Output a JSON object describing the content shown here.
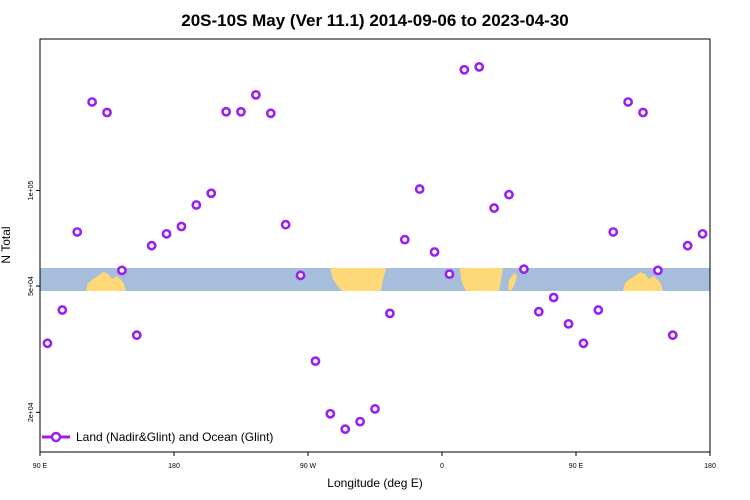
{
  "chart_data": {
    "type": "scatter",
    "title": "20S-10S May (Ver 11.1)   2014-09-06 to 2023-04-30",
    "xlabel": "Longitude (deg E)",
    "ylabel": "N Total",
    "y_scale": "log",
    "xlim": [
      90,
      540
    ],
    "ylim": [
      15000,
      300000
    ],
    "x_ticks": [
      {
        "value": 90,
        "label": "90 E"
      },
      {
        "value": 180,
        "label": "180"
      },
      {
        "value": 270,
        "label": "90 W"
      },
      {
        "value": 360,
        "label": "0"
      },
      {
        "value": 450,
        "label": "90 E"
      },
      {
        "value": 540,
        "label": "180"
      }
    ],
    "y_ticks": [
      {
        "value": 20000,
        "label": "2e+04"
      },
      {
        "value": 50000,
        "label": "5e+04"
      },
      {
        "value": 100000,
        "label": "1e+05"
      }
    ],
    "grid": false,
    "legend_position": "bottom-left",
    "series": [
      {
        "name": "Land (Nadir&Glint) and Ocean (Glint)",
        "color": "#9a1ff0",
        "marker": "open-circle",
        "points": [
          [
            95,
            33000
          ],
          [
            105,
            42000
          ],
          [
            115,
            74000
          ],
          [
            125,
            190000
          ],
          [
            135,
            176000
          ],
          [
            145,
            56000
          ],
          [
            155,
            35000
          ],
          [
            165,
            67000
          ],
          [
            175,
            73000
          ],
          [
            185,
            77000
          ],
          [
            195,
            90000
          ],
          [
            205,
            98000
          ],
          [
            215,
            177000
          ],
          [
            225,
            177000
          ],
          [
            235,
            200000
          ],
          [
            245,
            175000
          ],
          [
            255,
            78000
          ],
          [
            265,
            54000
          ],
          [
            275,
            29000
          ],
          [
            285,
            19800
          ],
          [
            295,
            17700
          ],
          [
            305,
            18700
          ],
          [
            315,
            20500
          ],
          [
            325,
            41000
          ],
          [
            335,
            70000
          ],
          [
            345,
            101000
          ],
          [
            355,
            64000
          ],
          [
            365,
            54500
          ],
          [
            375,
            240000
          ],
          [
            385,
            245000
          ],
          [
            395,
            88000
          ],
          [
            405,
            97000
          ],
          [
            415,
            56500
          ],
          [
            425,
            41500
          ],
          [
            435,
            46000
          ],
          [
            445,
            38000
          ],
          [
            455,
            33000
          ],
          [
            465,
            42000
          ],
          [
            475,
            74000
          ],
          [
            485,
            190000
          ],
          [
            495,
            176000
          ],
          [
            505,
            56000
          ],
          [
            515,
            35000
          ],
          [
            525,
            67000
          ],
          [
            535,
            73000
          ]
        ]
      }
    ]
  },
  "legend": {
    "label": "Land (Nadir&Glint) and Ocean (Glint)"
  },
  "map_strip": {
    "ocean_color": "#a6bddb",
    "land_color": "#ffd977"
  }
}
